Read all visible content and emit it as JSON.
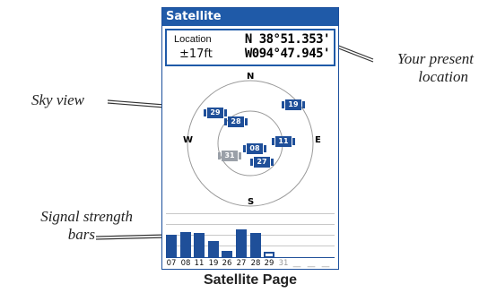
{
  "screen": {
    "title": "Satellite",
    "location": {
      "label": "Location",
      "accuracy": "±17ft",
      "latitude": "N 38°51.353'",
      "longitude": "W094°47.945'"
    },
    "compass": {
      "n": "N",
      "s": "S",
      "e": "E",
      "w": "W"
    },
    "satellites": [
      {
        "prn": "29",
        "state": "active"
      },
      {
        "prn": "28",
        "state": "active"
      },
      {
        "prn": "19",
        "state": "active"
      },
      {
        "prn": "08",
        "state": "active"
      },
      {
        "prn": "11",
        "state": "active"
      },
      {
        "prn": "31",
        "state": "dim"
      },
      {
        "prn": "27",
        "state": "active"
      }
    ],
    "signal_bars": [
      {
        "prn": "07",
        "level": 0.55
      },
      {
        "prn": "08",
        "level": 0.6
      },
      {
        "prn": "11",
        "level": 0.58
      },
      {
        "prn": "19",
        "level": 0.4
      },
      {
        "prn": "26",
        "level": 0.16
      },
      {
        "prn": "27",
        "level": 0.66
      },
      {
        "prn": "28",
        "level": 0.58
      },
      {
        "prn": "29",
        "level": 0.15,
        "hollow": true
      },
      {
        "prn": "31",
        "level": 0,
        "dim": true
      },
      {
        "prn": "__",
        "level": 0,
        "dim": true
      },
      {
        "prn": "__",
        "level": 0,
        "dim": true
      },
      {
        "prn": "__",
        "level": 0,
        "dim": true
      }
    ]
  },
  "callouts": {
    "present_location_line1": "Your present",
    "present_location_line2": "location",
    "sky_view": "Sky view",
    "signal_line1": "Signal strength",
    "signal_line2": "bars"
  },
  "caption": "Satellite Page",
  "colors": {
    "accent": "#1f5aa8",
    "satellite": "#1f4f99",
    "dim": "#9aa0a8"
  }
}
